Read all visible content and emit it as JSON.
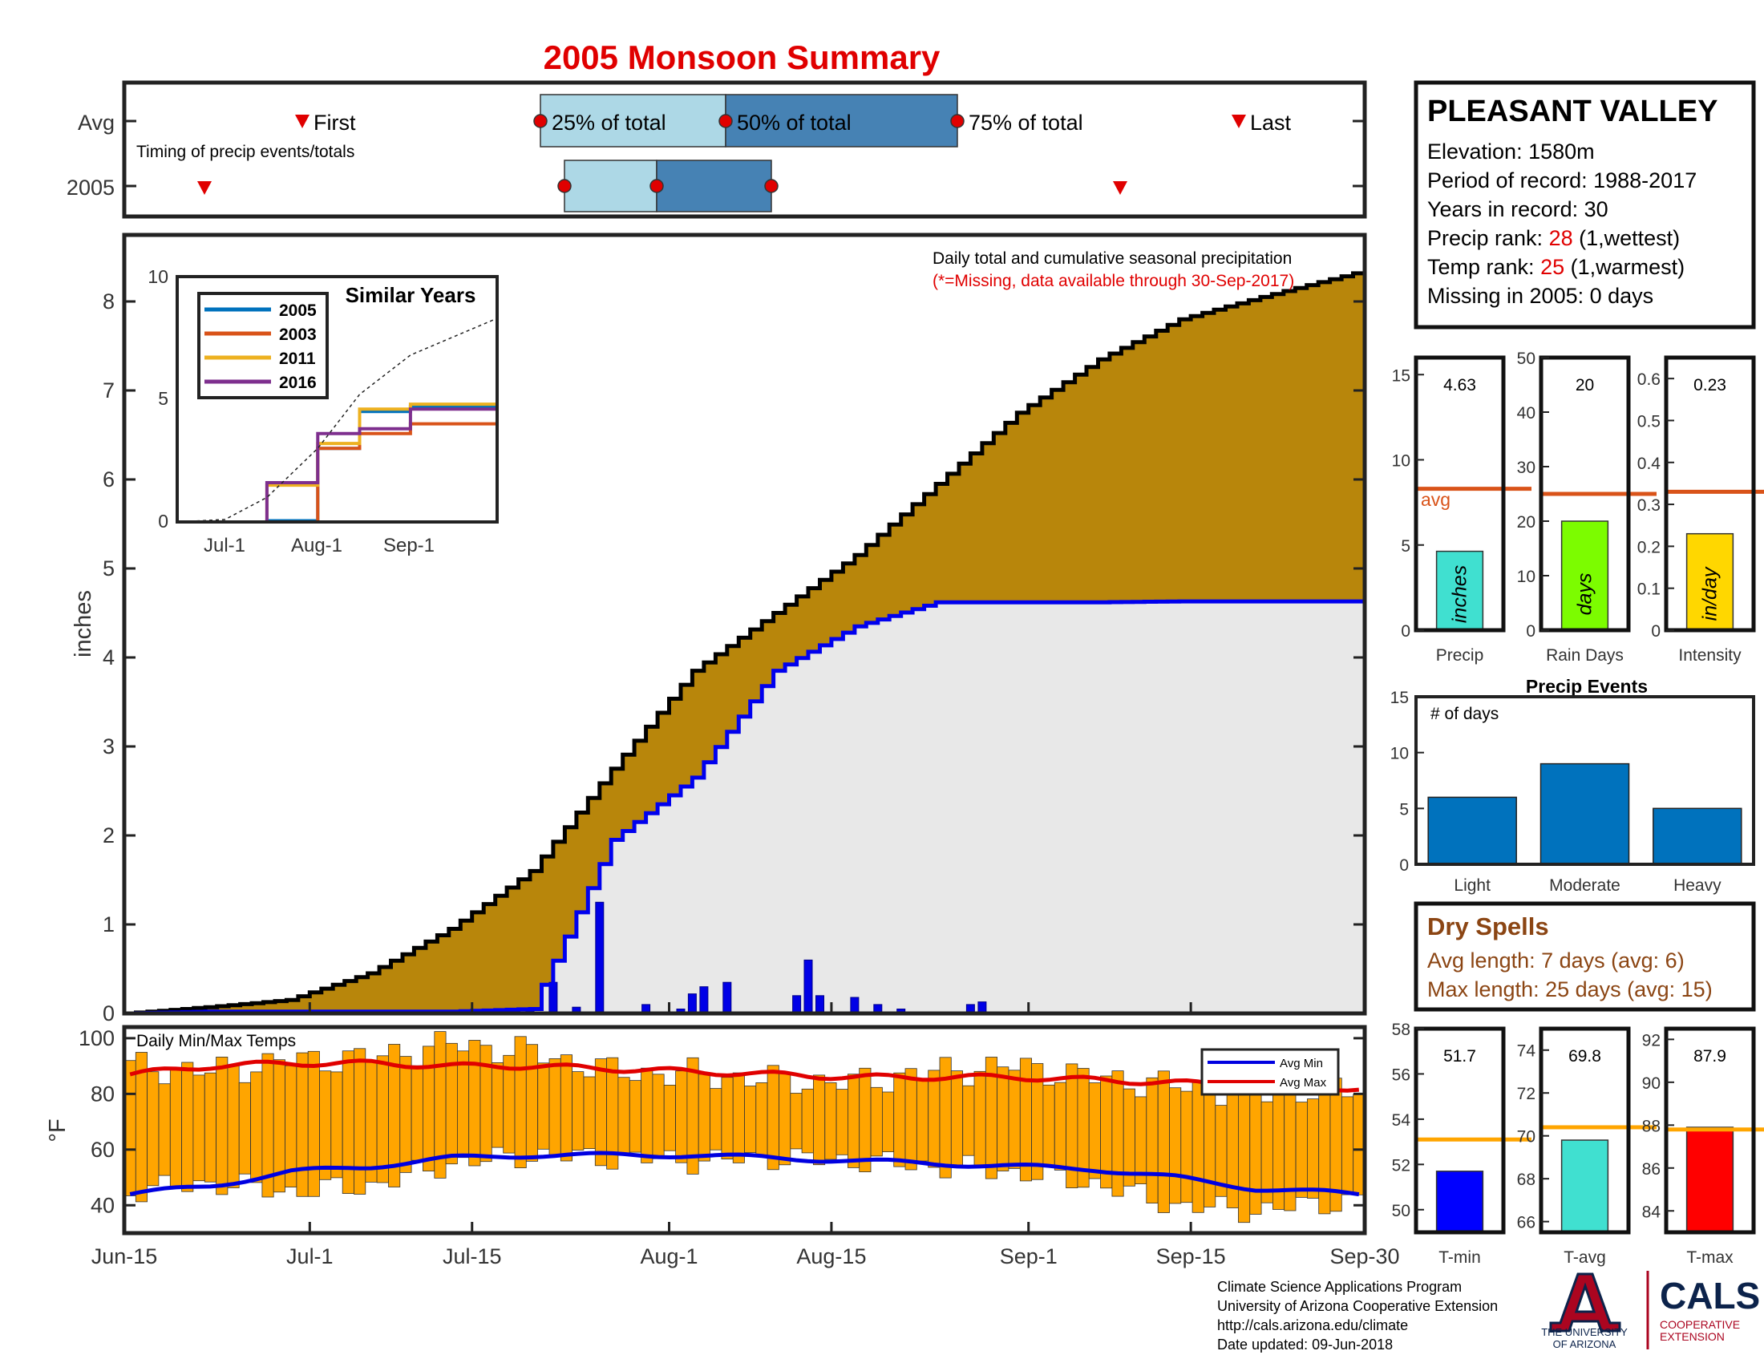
{
  "title": "2005 Monsoon Summary",
  "timing": {
    "row_labels": [
      "Avg",
      "2005"
    ],
    "caption": "Timing of precip events/totals",
    "first_label": "First",
    "last_label": "Last",
    "pct25_label": "25% of total",
    "pct50_label": "50% of total",
    "pct75_label": "75% of total",
    "avg": {
      "first": "Jul-1",
      "p25": "Jul-27",
      "p50": "Aug-6",
      "p75": "Aug-20",
      "last": "Sep-22"
    },
    "year": {
      "first": "Jun-20",
      "p25": "Jul-23",
      "p50": "Jul-30",
      "p75": "Aug-7",
      "last": "Sep-7"
    },
    "colors": {
      "light": "#add8e6",
      "dark": "#4682b4",
      "dot": "#ff0000"
    }
  },
  "station": {
    "name": "PLEASANT VALLEY",
    "elevation": "Elevation: 1580m",
    "period": "Period of record: 1988-2017",
    "years": "Years in record: 30",
    "precip_rank_label": "Precip rank: ",
    "precip_rank_value": "28",
    "precip_rank_note": " (1,wettest)",
    "temp_rank_label": "Temp rank: ",
    "temp_rank_value": "25",
    "temp_rank_note": " (1,warmest)",
    "missing": "Missing in 2005: 0 days"
  },
  "main_chart": {
    "note1": "Daily total and cumulative seasonal precipitation",
    "note2": "(*=Missing, data available through 30-Sep-2017)",
    "ylabel": "inches",
    "yticks": [
      "0",
      "1",
      "2",
      "3",
      "4",
      "5",
      "6",
      "7",
      "8"
    ],
    "xticks": [
      "Jun-15",
      "Jul-1",
      "Jul-15",
      "Aug-1",
      "Aug-15",
      "Sep-1",
      "Sep-15",
      "Sep-30"
    ]
  },
  "similar_years": {
    "title": "Similar Years",
    "legend": [
      "2005",
      "2003",
      "2011",
      "2016"
    ],
    "colors": [
      "#0072bd",
      "#d95319",
      "#edb120",
      "#7e2f8e"
    ],
    "yticks": [
      "0",
      "5",
      "10"
    ],
    "xticks": [
      "Jul-1",
      "Aug-1",
      "Sep-1"
    ]
  },
  "temps_chart": {
    "label": "Daily Min/Max Temps",
    "ylabel": "°F",
    "yticks": [
      "40",
      "60",
      "80",
      "100"
    ],
    "legend_min": "Avg Min",
    "legend_max": "Avg Max"
  },
  "stat_bars": [
    {
      "value_label": "4.63",
      "value": 4.63,
      "avg": 8.3,
      "max": 16,
      "ticks": [
        "0",
        "5",
        "10",
        "15"
      ],
      "tick_vals": [
        0,
        5,
        10,
        15
      ],
      "xlabel": "Precip",
      "inner": "inches",
      "color": "#40e0d0",
      "avg_text": "avg"
    },
    {
      "value_label": "20",
      "value": 20,
      "avg": 25,
      "max": 50,
      "ticks": [
        "0",
        "10",
        "20",
        "30",
        "40",
        "50"
      ],
      "tick_vals": [
        0,
        10,
        20,
        30,
        40,
        50
      ],
      "xlabel": "Rain Days",
      "inner": "days",
      "color": "#7cfc00"
    },
    {
      "value_label": "0.23",
      "value": 0.23,
      "avg": 0.33,
      "max": 0.65,
      "ticks": [
        "0",
        "0.1",
        "0.2",
        "0.3",
        "0.4",
        "0.5",
        "0.6"
      ],
      "tick_vals": [
        0,
        0.1,
        0.2,
        0.3,
        0.4,
        0.5,
        0.6
      ],
      "xlabel": "Intensity",
      "inner": "in/day",
      "color": "#ffd700"
    }
  ],
  "precip_events": {
    "title": "Precip Events",
    "inner": "# of days",
    "categories": [
      "Light",
      "Moderate",
      "Heavy"
    ],
    "values": [
      6,
      9,
      5
    ],
    "yticks": [
      "0",
      "5",
      "10",
      "15"
    ]
  },
  "dry_spells": {
    "title": "Dry Spells",
    "avg_length": "Avg length: 7 days (avg: 6)",
    "max_length": "Max length: 25 days (avg: 15)"
  },
  "temp_bars": [
    {
      "value_label": "51.7",
      "value": 51.7,
      "avg": 53.1,
      "min": 49,
      "max": 58,
      "ticks": [
        "50",
        "52",
        "54",
        "56",
        "58"
      ],
      "tick_vals": [
        50,
        52,
        54,
        56,
        58
      ],
      "xlabel": "T-min",
      "color": "#0000ff"
    },
    {
      "value_label": "69.8",
      "value": 69.8,
      "avg": 70.4,
      "min": 65.5,
      "max": 75,
      "ticks": [
        "66",
        "68",
        "70",
        "72",
        "74"
      ],
      "tick_vals": [
        66,
        68,
        70,
        72,
        74
      ],
      "xlabel": "T-avg",
      "color": "#40e0d0"
    },
    {
      "value_label": "87.9",
      "value": 87.9,
      "avg": 87.8,
      "min": 83,
      "max": 92.5,
      "ticks": [
        "84",
        "86",
        "88",
        "90",
        "92"
      ],
      "tick_vals": [
        84,
        86,
        88,
        90,
        92
      ],
      "xlabel": "T-max",
      "color": "#ff0000"
    }
  ],
  "footer": {
    "line1": "Climate Science Applications Program",
    "line2": "University of Arizona Cooperative Extension",
    "line3": "http://cals.arizona.edu/climate",
    "line4": " Date updated: 09-Jun-2018",
    "logo_ua1": "THE UNIVERSITY",
    "logo_ua2": "OF ARIZONA",
    "logo_cals": "CALS",
    "logo_coop1": "COOPERATIVE",
    "logo_coop2": "EXTENSION"
  },
  "chart_data": [
    {
      "type": "area",
      "title": "Daily total and cumulative seasonal precipitation",
      "ylabel": "inches",
      "ylim": [
        0,
        8.8
      ],
      "x_dates": [
        "Jun-15",
        "Jun-22",
        "Jun-29",
        "Jul-6",
        "Jul-13",
        "Jul-20",
        "Jul-27",
        "Aug-3",
        "Aug-10",
        "Aug-17",
        "Aug-24",
        "Aug-31",
        "Sep-7",
        "Sep-14",
        "Sep-21",
        "Sep-30"
      ],
      "series": [
        {
          "name": "Avg",
          "values": [
            0.0,
            0.07,
            0.15,
            0.45,
            0.95,
            1.6,
            2.75,
            3.85,
            4.5,
            5.15,
            5.95,
            6.75,
            7.35,
            7.8,
            8.05,
            8.35
          ]
        },
        {
          "name": "2005",
          "values": [
            0.0,
            0.02,
            0.02,
            0.02,
            0.02,
            0.05,
            1.95,
            2.65,
            3.85,
            4.35,
            4.62,
            4.62,
            4.62,
            4.63,
            4.63,
            4.63
          ]
        }
      ],
      "daily_2005": [
        {
          "x": "Jul-20",
          "y": 0.05
        },
        {
          "x": "Jul-22",
          "y": 0.35
        },
        {
          "x": "Jul-24",
          "y": 0.07
        },
        {
          "x": "Jul-26",
          "y": 1.25
        },
        {
          "x": "Jul-30",
          "y": 0.1
        },
        {
          "x": "Aug-2",
          "y": 0.05
        },
        {
          "x": "Aug-3",
          "y": 0.22
        },
        {
          "x": "Aug-4",
          "y": 0.3
        },
        {
          "x": "Aug-6",
          "y": 0.35
        },
        {
          "x": "Aug-12",
          "y": 0.2
        },
        {
          "x": "Aug-13",
          "y": 0.6
        },
        {
          "x": "Aug-14",
          "y": 0.2
        },
        {
          "x": "Aug-17",
          "y": 0.18
        },
        {
          "x": "Aug-19",
          "y": 0.1
        },
        {
          "x": "Aug-21",
          "y": 0.05
        },
        {
          "x": "Aug-27",
          "y": 0.1
        },
        {
          "x": "Aug-28",
          "y": 0.13
        }
      ]
    },
    {
      "type": "bar",
      "title": "Daily Min/Max Temps",
      "ylabel": "°F",
      "ylim": [
        30,
        104
      ],
      "x_dates": [
        "Jun-15",
        "Jun-22",
        "Jun-29",
        "Jul-6",
        "Jul-13",
        "Jul-20",
        "Jul-27",
        "Aug-3",
        "Aug-10",
        "Aug-17",
        "Aug-24",
        "Aug-31",
        "Sep-7",
        "Sep-14",
        "Sep-21",
        "Sep-30"
      ],
      "series": [
        {
          "name": "Max",
          "values": [
            90,
            88,
            92,
            93,
            98,
            95,
            88,
            87,
            85,
            84,
            88,
            90,
            86,
            83,
            80,
            82
          ]
        },
        {
          "name": "Min",
          "values": [
            45,
            48,
            45,
            47,
            55,
            58,
            57,
            56,
            57,
            56,
            54,
            52,
            48,
            40,
            38,
            42
          ]
        },
        {
          "name": "Avg Max",
          "values": [
            87,
            90,
            91,
            91,
            90,
            90,
            89,
            88,
            87,
            86,
            86,
            86,
            85,
            84,
            83,
            82
          ]
        },
        {
          "name": "Avg Min",
          "values": [
            44,
            47,
            52,
            54,
            57,
            58,
            58,
            58,
            57,
            56,
            55,
            54,
            53,
            50,
            46,
            44
          ]
        }
      ]
    },
    {
      "type": "line",
      "title": "Similar Years",
      "ylim": [
        0,
        10
      ],
      "x_dates": [
        "Jun-15",
        "Jul-1",
        "Jul-15",
        "Aug-1",
        "Aug-15",
        "Sep-1",
        "Sep-30"
      ],
      "series": [
        {
          "name": "2005",
          "values": [
            0,
            0,
            0.05,
            3.0,
            4.5,
            4.7,
            4.7
          ]
        },
        {
          "name": "2003",
          "values": [
            0,
            0,
            0,
            3.0,
            3.6,
            4.0,
            4.6
          ]
        },
        {
          "name": "2011",
          "values": [
            0,
            0,
            1.5,
            3.2,
            4.6,
            4.8,
            5.1
          ]
        },
        {
          "name": "2016",
          "values": [
            0,
            0,
            1.6,
            3.6,
            3.8,
            4.6,
            5.2
          ]
        },
        {
          "name": "Avg",
          "values": [
            0,
            0.1,
            1.0,
            3.0,
            5.2,
            6.8,
            8.3
          ]
        }
      ]
    },
    {
      "type": "bar",
      "title": "Precip Events",
      "categories": [
        "Light",
        "Moderate",
        "Heavy"
      ],
      "values": [
        6,
        9,
        5
      ],
      "ylim": [
        0,
        15
      ]
    }
  ]
}
